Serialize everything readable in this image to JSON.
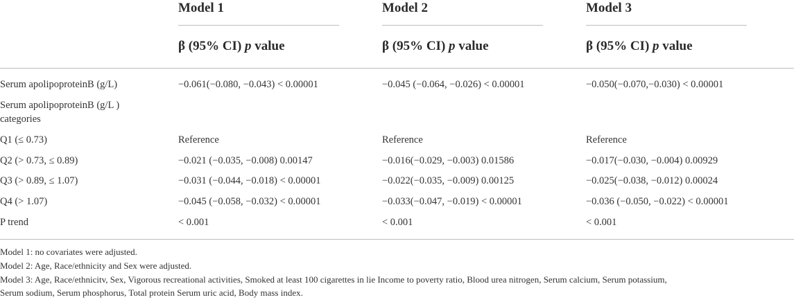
{
  "header": {
    "models": [
      "Model 1",
      "Model 2",
      "Model 3"
    ],
    "beta_label": "β (95% CI)",
    "p_label": "p",
    "value_label": "value"
  },
  "rows": [
    {
      "label": "Serum apolipoproteinB (g/L)",
      "m1": "−0.061(−0.080, −0.043) < 0.00001",
      "m2": "−0.045 (−0.064, −0.026) < 0.00001",
      "m3": "−0.050(−0.070,−0.030) < 0.00001"
    },
    {
      "label": "Serum apolipoproteinB (g/L ) categories",
      "m1": "",
      "m2": "",
      "m3": ""
    },
    {
      "label": "Q1 (≤ 0.73)",
      "m1": "Reference",
      "m2": "Reference",
      "m3": "Reference"
    },
    {
      "label": "Q2 (> 0.73, ≤ 0.89)",
      "m1": "−0.021 (−0.035, −0.008) 0.00147",
      "m2": "−0.016(−0.029, −0.003) 0.01586",
      "m3": "−0.017(−0.030, −0.004) 0.00929"
    },
    {
      "label": "Q3 (> 0.89, ≤ 1.07)",
      "m1": "−0.031 (−0.044, −0.018) < 0.00001",
      "m2": "−0.022(−0.035, −0.009) 0.00125",
      "m3": "−0.025(−0.038, −0.012) 0.00024"
    },
    {
      "label": "Q4 (> 1.07)",
      "m1": "−0.045 (−0.058, −0.032) < 0.00001",
      "m2": "−0.033(−0.047, −0.019) < 0.00001",
      "m3": "−0.036 (−0.050, −0.022) < 0.00001"
    },
    {
      "label": "P trend",
      "m1": "< 0.001",
      "m2": "< 0.001",
      "m3": "< 0.001"
    }
  ],
  "notes": [
    "Model 1: no covariates were adjusted.",
    "Model 2: Age, Race/ethnicity and Sex were adjusted.",
    "Model 3: Age, Race/ethnicitv, Sex, Vigorous recreational activities, Smoked at least 100 cigarettes in lie Income to poverty ratio, Blood urea nitrogen, Serum calcium, Serum potassium,",
    "Serum sodium, Serum phosphorus, Total protein Serum uric acid, Body mass index."
  ]
}
